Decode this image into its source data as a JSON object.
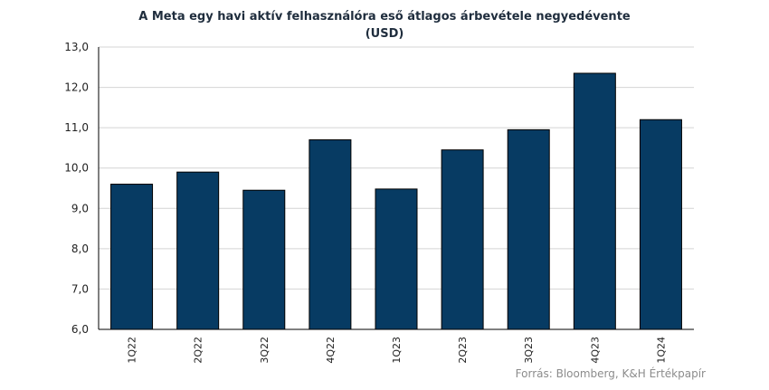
{
  "chart_data": {
    "type": "bar",
    "title": "A Meta egy havi aktív felhasználóra eső átlagos árbevétele negyedévente",
    "subtitle": "(USD)",
    "categories": [
      "1Q22",
      "2Q22",
      "3Q22",
      "4Q22",
      "1Q23",
      "2Q23",
      "3Q23",
      "4Q23",
      "1Q24"
    ],
    "values": [
      9.6,
      9.9,
      9.45,
      10.7,
      9.48,
      10.45,
      10.95,
      12.35,
      11.2
    ],
    "ylim": [
      6.0,
      13.0
    ],
    "yticks": [
      "6,0",
      "7,0",
      "8,0",
      "9,0",
      "10,0",
      "11,0",
      "12,0",
      "13,0"
    ],
    "ytick_values": [
      6,
      7,
      8,
      9,
      10,
      11,
      12,
      13
    ],
    "grid": true,
    "bar_color": "#073b63"
  },
  "source_text": "Forrás: Bloomberg,  K&H Értékpapír"
}
